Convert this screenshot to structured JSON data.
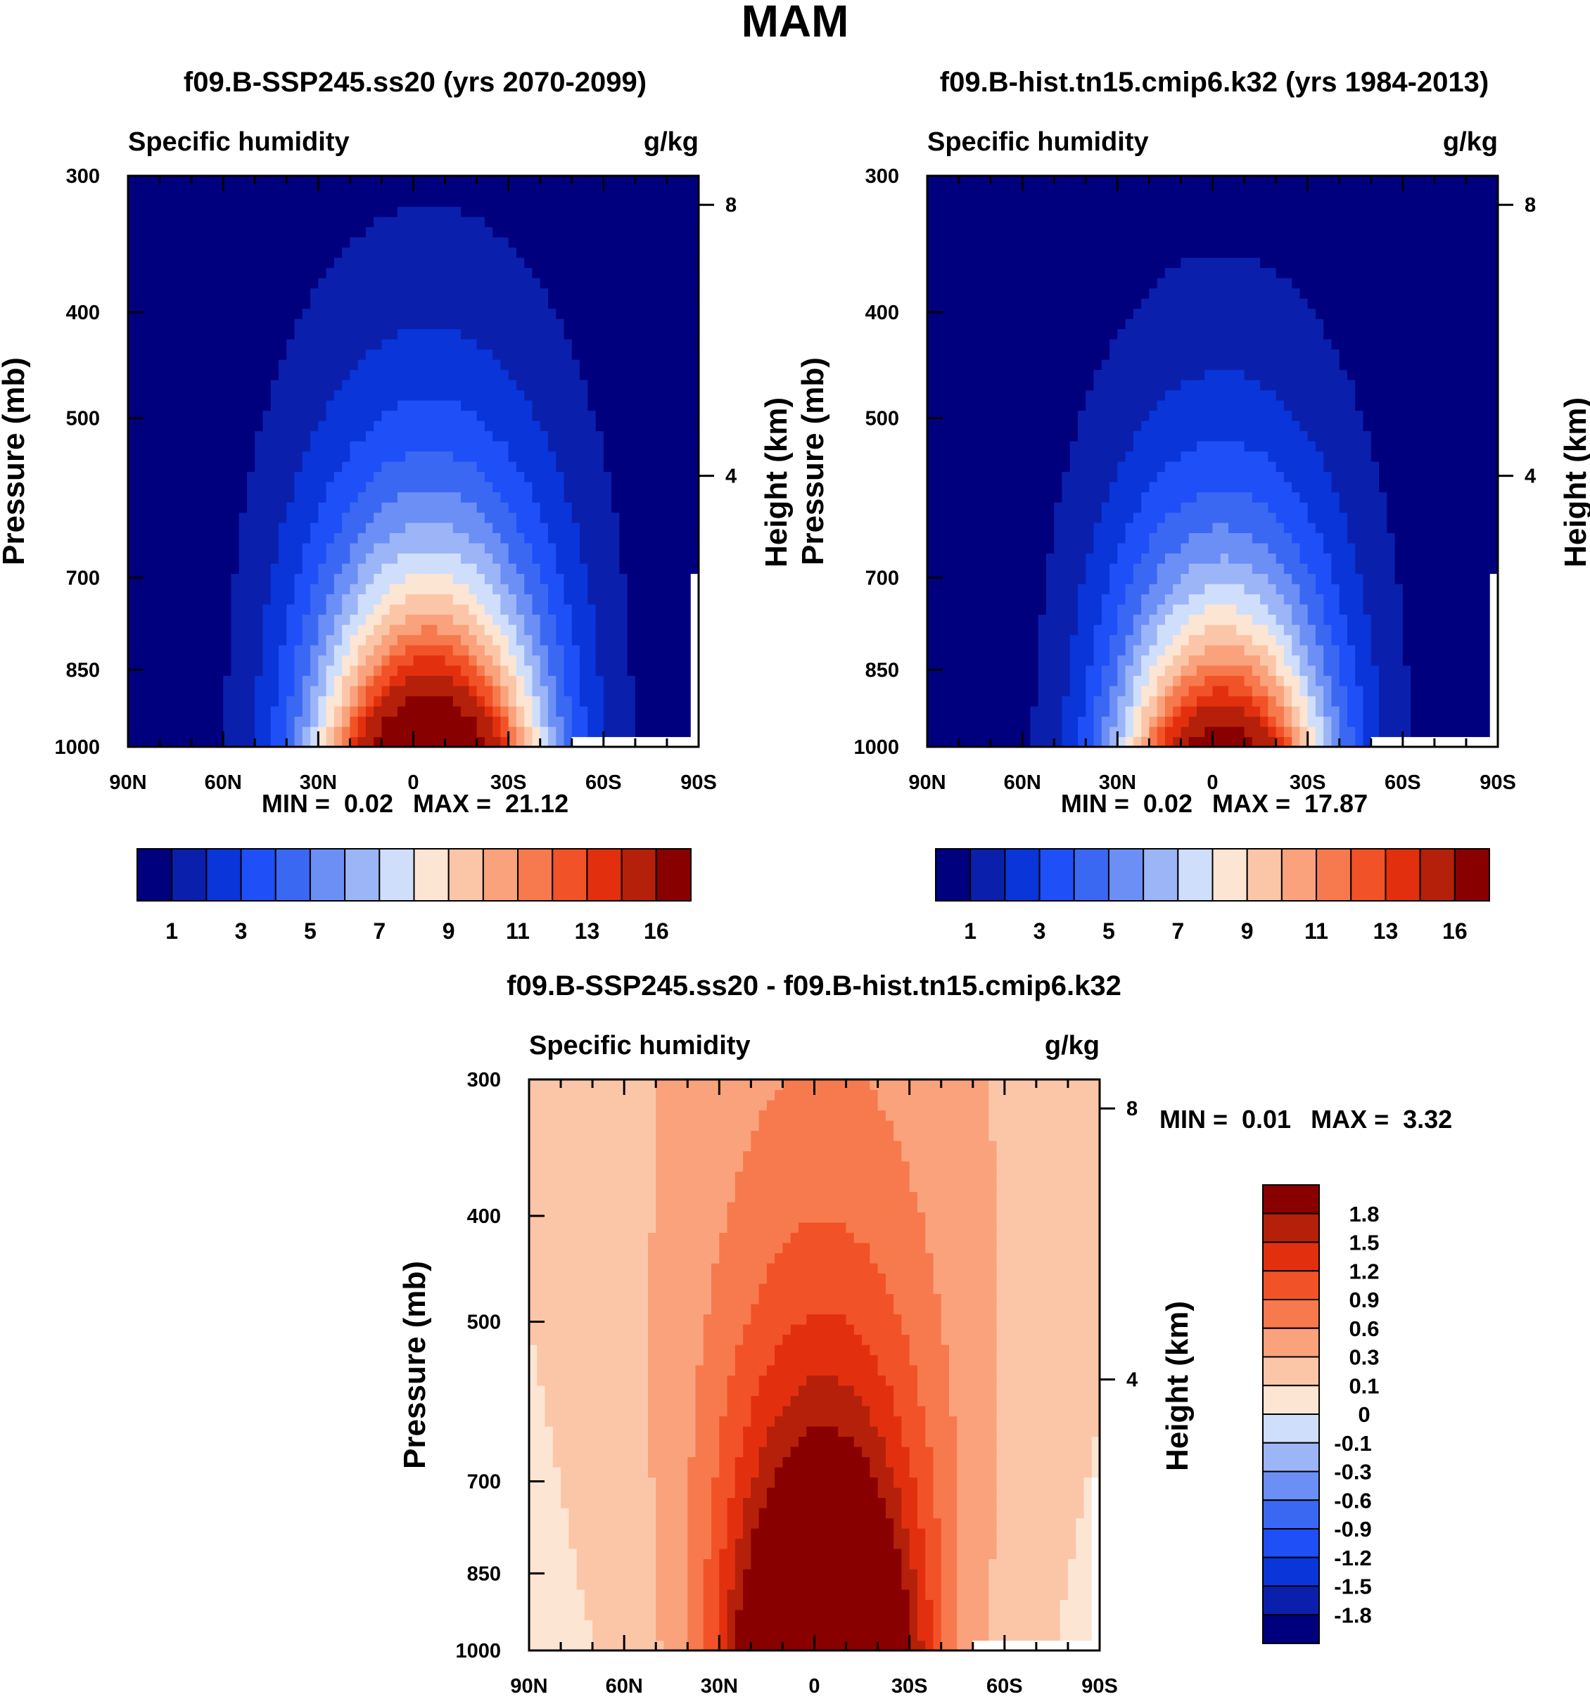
{
  "figure": {
    "season_title": "MAM"
  },
  "colors": {
    "abs_palette": [
      "#00007f",
      "#0a20ad",
      "#0a35d9",
      "#1f4ff7",
      "#3b68f3",
      "#6b8ff5",
      "#9cb5f7",
      "#cfdefb",
      "#fde5d3",
      "#fbc6a8",
      "#f9a27c",
      "#f67a4d",
      "#f25227",
      "#e2300e",
      "#b4200a",
      "#890000"
    ],
    "diff_palette": [
      "#00007f",
      "#0a20ad",
      "#0a35d9",
      "#1f4ff7",
      "#3b68f3",
      "#6b8ff5",
      "#9cb5f7",
      "#cfdefb",
      "#fde5d3",
      "#fbc6a8",
      "#f9a27c",
      "#f67a4d",
      "#f25227",
      "#e2300e",
      "#b4200a",
      "#890000"
    ],
    "missing": "#ffffff"
  },
  "chart_data": [
    {
      "id": "left",
      "type": "heatmap",
      "title": "f09.B-SSP245.ss20 (yrs 2070-2099)",
      "left_label": "Specific humidity",
      "right_label": "g/kg",
      "ylabel": "Pressure (mb)",
      "ylabel_right": "Height (km)",
      "x_tick_labels": [
        "90N",
        "60N",
        "30N",
        "0",
        "30S",
        "60S",
        "90S"
      ],
      "x_tick_values": [
        90,
        60,
        30,
        0,
        -30,
        -60,
        -90
      ],
      "xlim": [
        90,
        -90
      ],
      "y_tick_labels": [
        "300",
        "400",
        "500",
        "700",
        "850",
        "1000"
      ],
      "y_tick_values": [
        300,
        400,
        500,
        700,
        850,
        1000
      ],
      "ylim": [
        300,
        1000
      ],
      "height_tick_labels": [
        "8",
        "4"
      ],
      "height_tick_values": [
        8,
        4
      ],
      "stats": {
        "min_label": "MIN =",
        "min": "0.02",
        "max_label": "MAX =",
        "max": "21.12"
      },
      "field": {
        "peak_lat": -5,
        "surface_value": 21.12,
        "min_value": 0.02,
        "scale_height_km": 2.6,
        "lat_width": 38,
        "contour_levels": [
          1,
          2,
          3,
          4,
          5,
          6,
          7,
          8,
          9,
          10,
          11,
          12,
          13,
          14,
          16
        ]
      },
      "colorbar": {
        "orientation": "horizontal",
        "tick_labels": [
          "1",
          "3",
          "5",
          "7",
          "9",
          "11",
          "13",
          "16"
        ],
        "boxes": 16
      }
    },
    {
      "id": "right",
      "type": "heatmap",
      "title": "f09.B-hist.tn15.cmip6.k32 (yrs 1984-2013)",
      "left_label": "Specific humidity",
      "right_label": "g/kg",
      "ylabel": "Pressure (mb)",
      "ylabel_right": "Height (km)",
      "x_tick_labels": [
        "90N",
        "60N",
        "30N",
        "0",
        "30S",
        "60S",
        "90S"
      ],
      "x_tick_values": [
        90,
        60,
        30,
        0,
        -30,
        -60,
        -90
      ],
      "xlim": [
        90,
        -90
      ],
      "y_tick_labels": [
        "300",
        "400",
        "500",
        "700",
        "850",
        "1000"
      ],
      "y_tick_values": [
        300,
        400,
        500,
        700,
        850,
        1000
      ],
      "ylim": [
        300,
        1000
      ],
      "height_tick_labels": [
        "8",
        "4"
      ],
      "height_tick_values": [
        8,
        4
      ],
      "stats": {
        "min_label": "MIN =",
        "min": "0.02",
        "max_label": "MAX =",
        "max": "17.87"
      },
      "field": {
        "peak_lat": -3,
        "surface_value": 17.87,
        "min_value": 0.02,
        "scale_height_km": 2.5,
        "lat_width": 36,
        "contour_levels": [
          1,
          2,
          3,
          4,
          5,
          6,
          7,
          8,
          9,
          10,
          11,
          12,
          13,
          14,
          16
        ]
      },
      "colorbar": {
        "orientation": "horizontal",
        "tick_labels": [
          "1",
          "3",
          "5",
          "7",
          "9",
          "11",
          "13",
          "16"
        ],
        "boxes": 16
      }
    },
    {
      "id": "diff",
      "type": "heatmap",
      "title": "f09.B-SSP245.ss20 - f09.B-hist.tn15.cmip6.k32",
      "left_label": "Specific humidity",
      "right_label": "g/kg",
      "ylabel": "Pressure (mb)",
      "ylabel_right": "Height (km)",
      "x_tick_labels": [
        "90N",
        "60N",
        "30N",
        "0",
        "30S",
        "60S",
        "90S"
      ],
      "x_tick_values": [
        90,
        60,
        30,
        0,
        -30,
        -60,
        -90
      ],
      "xlim": [
        90,
        -90
      ],
      "y_tick_labels": [
        "300",
        "400",
        "500",
        "700",
        "850",
        "1000"
      ],
      "y_tick_values": [
        300,
        400,
        500,
        700,
        850,
        1000
      ],
      "ylim": [
        300,
        1000
      ],
      "height_tick_labels": [
        "8",
        "4"
      ],
      "height_tick_values": [
        8,
        4
      ],
      "stats": {
        "min_label": "MIN =",
        "min": "0.01",
        "max_label": "MAX =",
        "max": "3.32"
      },
      "field": {
        "peak_lat": -3,
        "surface_value": 3.32,
        "min_value": 0.01,
        "scale_height_km": 3.2,
        "lat_width": 30,
        "contour_levels": [
          -1.8,
          -1.5,
          -1.2,
          -0.9,
          -0.6,
          -0.3,
          -0.1,
          0,
          0.1,
          0.3,
          0.6,
          0.9,
          1.2,
          1.5,
          1.8
        ]
      },
      "colorbar": {
        "orientation": "vertical",
        "tick_labels": [
          "1.8",
          "1.5",
          "1.2",
          "0.9",
          "0.6",
          "0.3",
          "0.1",
          "0",
          "-0.1",
          "-0.3",
          "-0.6",
          "-0.9",
          "-1.2",
          "-1.5",
          "-1.8"
        ],
        "boxes": 16
      }
    }
  ]
}
